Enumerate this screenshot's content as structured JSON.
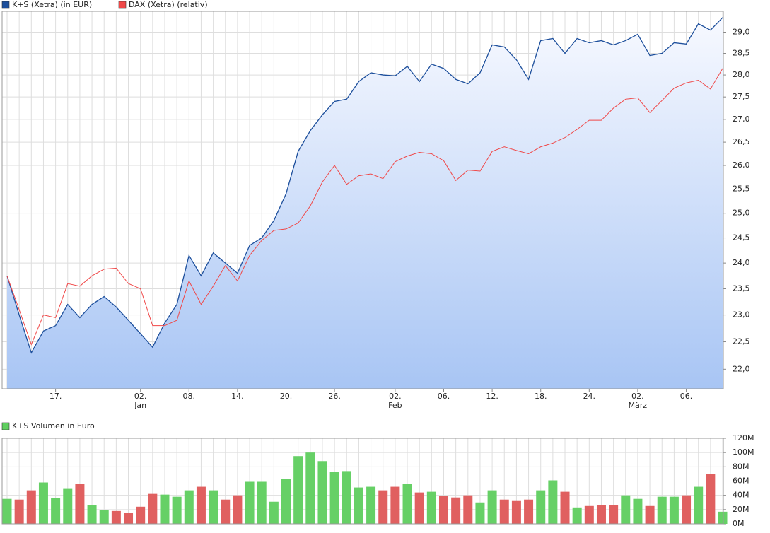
{
  "chart_data": [
    {
      "type": "line",
      "log": true,
      "grid": true,
      "categories": [
        null,
        null,
        null,
        null,
        "17.",
        null,
        null,
        null,
        null,
        null,
        null,
        "02.",
        null,
        null,
        null,
        "08.",
        null,
        null,
        null,
        "14.",
        null,
        null,
        null,
        "20.",
        null,
        null,
        null,
        "26.",
        null,
        null,
        null,
        null,
        "02.",
        null,
        null,
        null,
        "06.",
        null,
        null,
        null,
        "12.",
        null,
        null,
        null,
        "18.",
        null,
        null,
        null,
        "24.",
        null,
        null,
        null,
        "02.",
        null,
        null,
        null,
        "06.",
        null,
        null,
        null
      ],
      "category_months": [
        null,
        null,
        null,
        null,
        null,
        null,
        null,
        null,
        null,
        null,
        null,
        "Jan",
        null,
        null,
        null,
        null,
        null,
        null,
        null,
        null,
        null,
        null,
        null,
        null,
        null,
        null,
        null,
        null,
        null,
        null,
        null,
        null,
        "Feb",
        null,
        null,
        null,
        null,
        null,
        null,
        null,
        null,
        null,
        null,
        null,
        null,
        null,
        null,
        null,
        null,
        null,
        null,
        null,
        "März",
        null,
        null,
        null,
        null,
        null,
        null,
        null
      ],
      "series": [
        {
          "name": "K+S (Xetra) (in EUR)",
          "color": "#1d4f9c",
          "fill": true,
          "values": [
            23.75,
            23.0,
            22.3,
            22.7,
            22.8,
            23.2,
            22.95,
            23.2,
            23.35,
            23.15,
            22.9,
            22.65,
            22.4,
            22.85,
            23.2,
            24.15,
            23.75,
            24.2,
            24.0,
            23.8,
            24.35,
            24.5,
            24.85,
            25.4,
            26.3,
            26.75,
            27.1,
            27.4,
            27.45,
            27.85,
            28.05,
            28.0,
            27.98,
            28.2,
            27.85,
            28.25,
            28.15,
            27.9,
            27.8,
            28.05,
            28.7,
            28.65,
            28.35,
            27.9,
            28.8,
            28.85,
            28.5,
            28.85,
            28.75,
            28.8,
            28.7,
            28.8,
            28.95,
            28.45,
            28.5,
            28.75,
            28.72,
            29.2,
            29.05,
            29.35
          ]
        },
        {
          "name": "DAX (Xetra) (relativ)",
          "color": "#f04848",
          "fill": false,
          "values": [
            23.75,
            23.1,
            22.45,
            23.0,
            22.95,
            23.6,
            23.55,
            23.75,
            23.88,
            23.9,
            23.6,
            23.5,
            22.8,
            22.8,
            22.9,
            23.65,
            23.2,
            23.55,
            23.95,
            23.65,
            24.15,
            24.45,
            24.65,
            24.68,
            24.8,
            25.15,
            25.65,
            26.0,
            25.6,
            25.78,
            25.82,
            25.72,
            26.08,
            26.2,
            26.28,
            26.25,
            26.1,
            25.68,
            25.9,
            25.88,
            26.3,
            26.4,
            26.32,
            26.25,
            26.4,
            26.48,
            26.6,
            26.78,
            26.98,
            26.98,
            27.25,
            27.45,
            27.48,
            27.15,
            27.42,
            27.7,
            27.82,
            27.88,
            27.68,
            28.15
          ]
        }
      ],
      "ylim": [
        21.65,
        29.5
      ],
      "yticks": [
        {
          "value": 22,
          "label": "22,0"
        },
        {
          "value": 22.5,
          "label": "22,5"
        },
        {
          "value": 23,
          "label": "23,0"
        },
        {
          "value": 23.5,
          "label": "23,5"
        },
        {
          "value": 24,
          "label": "24,0"
        },
        {
          "value": 24.5,
          "label": "24,5"
        },
        {
          "value": 25,
          "label": "25,0"
        },
        {
          "value": 25.5,
          "label": "25,5"
        },
        {
          "value": 26,
          "label": "26,0"
        },
        {
          "value": 26.5,
          "label": "26,5"
        },
        {
          "value": 27,
          "label": "27,0"
        },
        {
          "value": 27.5,
          "label": "27,5"
        },
        {
          "value": 28,
          "label": "28,0"
        },
        {
          "value": 28.5,
          "label": "28,5"
        },
        {
          "value": 29,
          "label": "29,0"
        }
      ]
    },
    {
      "type": "bar",
      "grid": true,
      "series": [
        {
          "name": "K+S Volumen in Euro",
          "color": "#5fcf5f",
          "colors": [
            "#66d066",
            "#e06060",
            "#e06060",
            "#66d066",
            "#66d066",
            "#66d066",
            "#e06060",
            "#66d066",
            "#66d066",
            "#e06060",
            "#e06060",
            "#e06060",
            "#e06060",
            "#66d066",
            "#66d066",
            "#66d066",
            "#e06060",
            "#66d066",
            "#e06060",
            "#e06060",
            "#66d066",
            "#66d066",
            "#66d066",
            "#66d066",
            "#66d066",
            "#66d066",
            "#66d066",
            "#66d066",
            "#66d066",
            "#66d066",
            "#66d066",
            "#e06060",
            "#e06060",
            "#66d066",
            "#e06060",
            "#66d066",
            "#e06060",
            "#e06060",
            "#e06060",
            "#66d066",
            "#66d066",
            "#e06060",
            "#e06060",
            "#e06060",
            "#66d066",
            "#66d066",
            "#e06060",
            "#66d066",
            "#e06060",
            "#e06060",
            "#e06060",
            "#66d066",
            "#66d066",
            "#e06060",
            "#66d066",
            "#66d066",
            "#e06060",
            "#66d066",
            "#e06060",
            "#66d066"
          ],
          "values": [
            35000000,
            34000000,
            47000000,
            58000000,
            36000000,
            49000000,
            56000000,
            26000000,
            19000000,
            18000000,
            15000000,
            24000000,
            42000000,
            41000000,
            38000000,
            47000000,
            52000000,
            47000000,
            34000000,
            40000000,
            59000000,
            59000000,
            31000000,
            63000000,
            95000000,
            100000000,
            88000000,
            73000000,
            74000000,
            51000000,
            52000000,
            47000000,
            52000000,
            56000000,
            44000000,
            45000000,
            39000000,
            37000000,
            40000000,
            30000000,
            47000000,
            34000000,
            32000000,
            34000000,
            47000000,
            61000000,
            45000000,
            23000000,
            25000000,
            26000000,
            26000000,
            40000000,
            35000000,
            25000000,
            38000000,
            38000000,
            40000000,
            52000000,
            70000000,
            17000000
          ]
        }
      ],
      "ylim": [
        0,
        120000000
      ],
      "yticks": [
        {
          "value": 0,
          "label": "0M"
        },
        {
          "value": 20000000,
          "label": "20M"
        },
        {
          "value": 40000000,
          "label": "40M"
        },
        {
          "value": 60000000,
          "label": "60M"
        },
        {
          "value": 80000000,
          "label": "80M"
        },
        {
          "value": 100000000,
          "label": "100M"
        },
        {
          "value": 120000000,
          "label": "120M"
        }
      ]
    }
  ]
}
